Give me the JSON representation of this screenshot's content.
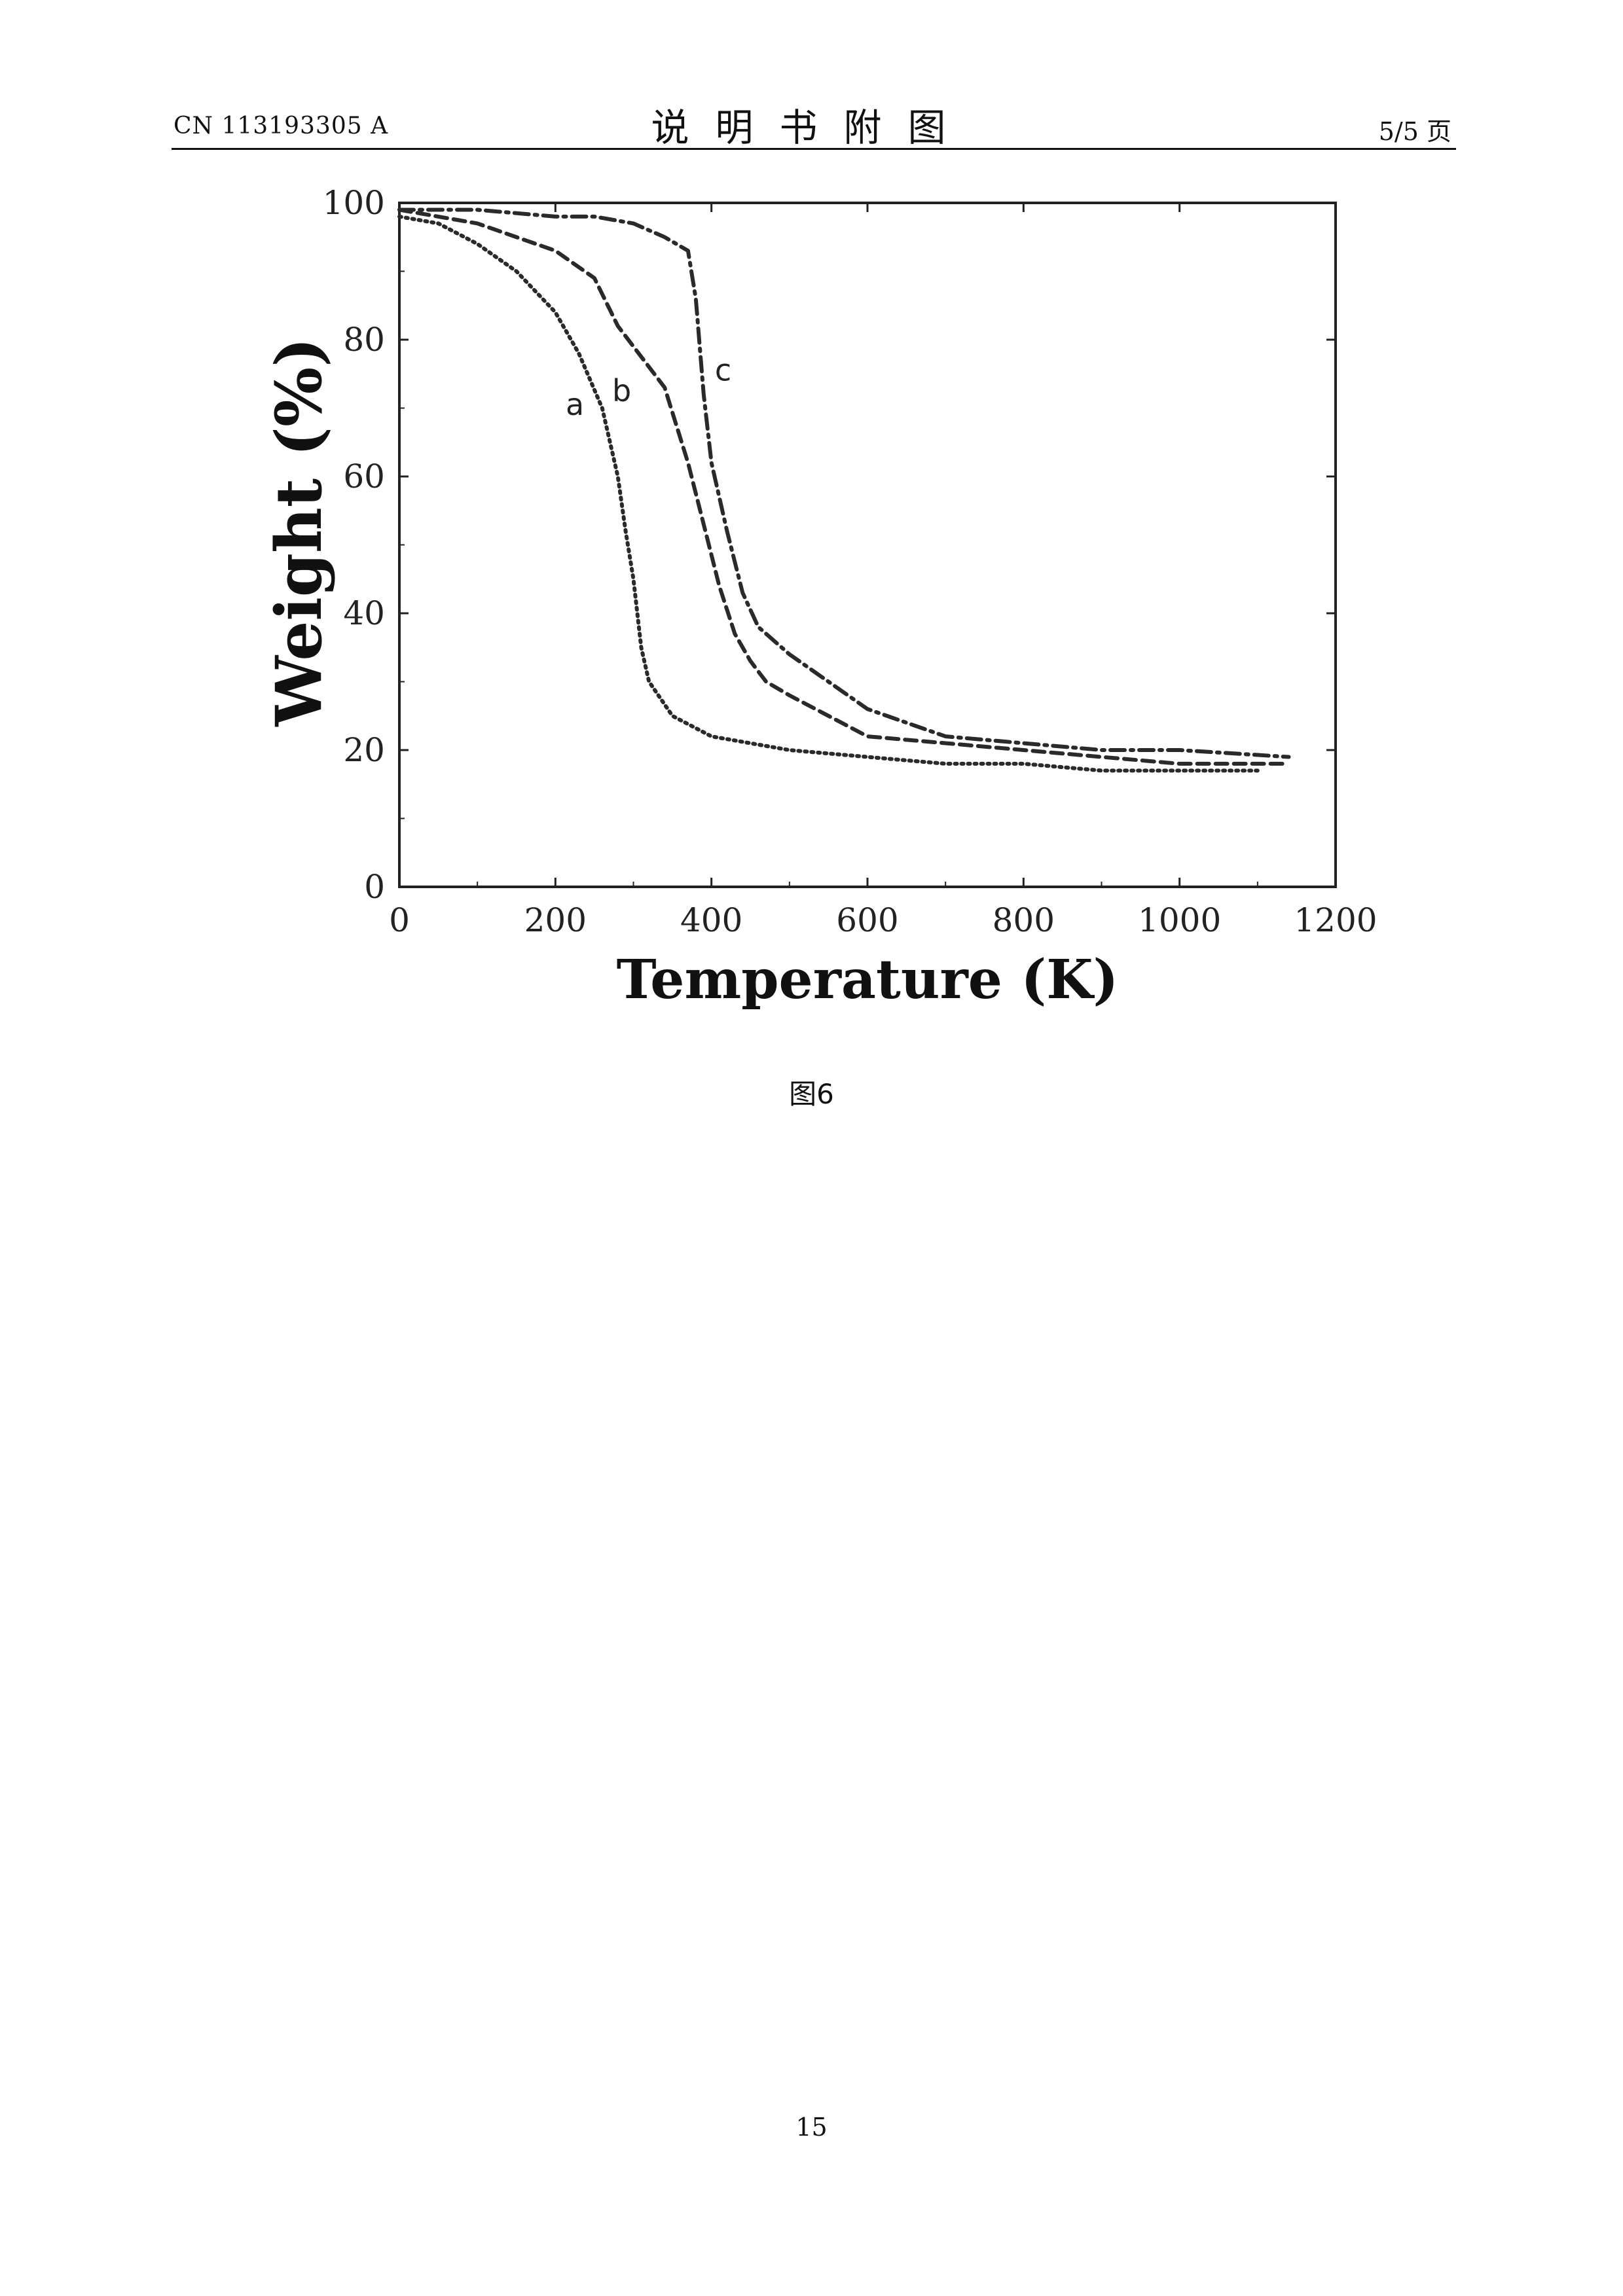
{
  "header": {
    "patent_number": "CN 113193305 A",
    "section_title": "说明书附图",
    "page_of": "5/5 页"
  },
  "figure_caption": "图6",
  "page_number": "15",
  "chart_data": {
    "type": "line",
    "title": "",
    "xlabel": "Temperature (K)",
    "ylabel": "Weight (%)",
    "xlim": [
      0,
      1200
    ],
    "ylim": [
      0,
      100
    ],
    "xticks": [
      0,
      200,
      400,
      600,
      800,
      1000,
      1200
    ],
    "yticks": [
      0,
      20,
      40,
      60,
      80,
      100
    ],
    "grid": false,
    "series": [
      {
        "name": "a",
        "style": "dotted",
        "x": [
          0,
          50,
          100,
          150,
          200,
          230,
          260,
          280,
          290,
          300,
          310,
          320,
          350,
          400,
          500,
          600,
          700,
          800,
          900,
          1000,
          1100
        ],
        "y": [
          98,
          97,
          94,
          90,
          84,
          78,
          70,
          60,
          52,
          45,
          35,
          30,
          25,
          22,
          20,
          19,
          18,
          18,
          17,
          17,
          17
        ]
      },
      {
        "name": "b",
        "style": "dashed",
        "x": [
          0,
          100,
          200,
          250,
          280,
          300,
          340,
          370,
          390,
          410,
          430,
          450,
          470,
          500,
          600,
          700,
          800,
          900,
          1000,
          1140
        ],
        "y": [
          99,
          97,
          93,
          89,
          82,
          79,
          73,
          62,
          53,
          44,
          37,
          33,
          30,
          28,
          22,
          21,
          20,
          19,
          18,
          18
        ]
      },
      {
        "name": "c",
        "style": "dash-dot",
        "x": [
          0,
          100,
          200,
          250,
          300,
          340,
          370,
          380,
          390,
          400,
          420,
          440,
          460,
          500,
          600,
          700,
          800,
          900,
          1000,
          1140
        ],
        "y": [
          99,
          99,
          98,
          98,
          97,
          95,
          93,
          86,
          72,
          62,
          52,
          43,
          38,
          34,
          26,
          22,
          21,
          20,
          20,
          19
        ]
      }
    ]
  }
}
